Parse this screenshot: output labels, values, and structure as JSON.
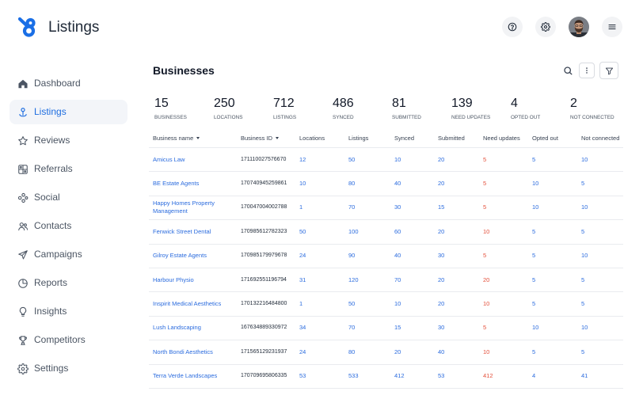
{
  "app": {
    "title": "Listings",
    "logo_icon": "brand-logo-icon"
  },
  "header": {
    "icons": {
      "help": "help-icon",
      "settings": "gear-icon",
      "avatar": "avatar",
      "menu": "hamburger-menu-icon"
    }
  },
  "sidebar": {
    "items": [
      {
        "label": "Dashboard",
        "icon": "home-icon",
        "active": false
      },
      {
        "label": "Listings",
        "icon": "location-pin-icon",
        "active": true
      },
      {
        "label": "Reviews",
        "icon": "star-icon",
        "active": false
      },
      {
        "label": "Referrals",
        "icon": "gift-grid-icon",
        "active": false
      },
      {
        "label": "Social",
        "icon": "share-icon",
        "active": false
      },
      {
        "label": "Contacts",
        "icon": "users-icon",
        "active": false
      },
      {
        "label": "Campaigns",
        "icon": "paper-plane-icon",
        "active": false
      },
      {
        "label": "Reports",
        "icon": "pie-chart-icon",
        "active": false
      },
      {
        "label": "Insights",
        "icon": "lightbulb-icon",
        "active": false
      },
      {
        "label": "Competitors",
        "icon": "trophy-icon",
        "active": false
      },
      {
        "label": "Settings",
        "icon": "gear-icon",
        "active": false
      }
    ]
  },
  "main": {
    "title": "Businesses",
    "toolbar": {
      "search_icon": "search-icon",
      "more_icon": "more-vertical-icon",
      "filter_icon": "filter-icon"
    },
    "stats": [
      {
        "value": "15",
        "label": "BUSINESSES"
      },
      {
        "value": "250",
        "label": "LOCATIONS"
      },
      {
        "value": "712",
        "label": "LISTINGS"
      },
      {
        "value": "486",
        "label": "SYNCED"
      },
      {
        "value": "81",
        "label": "SUBMITTED"
      },
      {
        "value": "139",
        "label": "NEED UPDATES"
      },
      {
        "value": "4",
        "label": "OPTED OUT"
      },
      {
        "value": "2",
        "label": "NOT CONNECTED"
      }
    ],
    "table": {
      "columns": [
        "Business name",
        "Business ID",
        "Locations",
        "Listings",
        "Synced",
        "Submitted",
        "Need updates",
        "Opted out",
        "Not connected"
      ],
      "rows": [
        {
          "name": "Amicus Law",
          "id": "171110027576670",
          "locations": "12",
          "listings": "50",
          "synced": "10",
          "submitted": "20",
          "need_updates": "5",
          "opted_out": "5",
          "not_connected": "10"
        },
        {
          "name": "BE Estate Agents",
          "id": "170740945259861",
          "locations": "10",
          "listings": "80",
          "synced": "40",
          "submitted": "20",
          "need_updates": "5",
          "opted_out": "10",
          "not_connected": "5"
        },
        {
          "name": "Happy Homes Property Management",
          "id": "170047004002788",
          "locations": "1",
          "listings": "70",
          "synced": "30",
          "submitted": "15",
          "need_updates": "5",
          "opted_out": "10",
          "not_connected": "10"
        },
        {
          "name": "Fenwick Street Dental",
          "id": "170985612782323",
          "locations": "50",
          "listings": "100",
          "synced": "60",
          "submitted": "20",
          "need_updates": "10",
          "opted_out": "5",
          "not_connected": "5"
        },
        {
          "name": "Gilroy Estate Agents",
          "id": "170985179979678",
          "locations": "24",
          "listings": "90",
          "synced": "40",
          "submitted": "30",
          "need_updates": "5",
          "opted_out": "5",
          "not_connected": "10"
        },
        {
          "name": "Harbour Physio",
          "id": "171692551196794",
          "locations": "31",
          "listings": "120",
          "synced": "70",
          "submitted": "20",
          "need_updates": "20",
          "opted_out": "5",
          "not_connected": "5"
        },
        {
          "name": "Inspirit Medical Aesthetics",
          "id": "170132216484800",
          "locations": "1",
          "listings": "50",
          "synced": "10",
          "submitted": "20",
          "need_updates": "10",
          "opted_out": "5",
          "not_connected": "5"
        },
        {
          "name": "Lush Landscaping",
          "id": "167634889330972",
          "locations": "34",
          "listings": "70",
          "synced": "15",
          "submitted": "30",
          "need_updates": "5",
          "opted_out": "10",
          "not_connected": "10"
        },
        {
          "name": "North Bondi Aesthetics",
          "id": "171565129231937",
          "locations": "24",
          "listings": "80",
          "synced": "20",
          "submitted": "40",
          "need_updates": "10",
          "opted_out": "5",
          "not_connected": "5"
        },
        {
          "name": "Terra Verde Landscapes",
          "id": "170709695806335",
          "locations": "53",
          "listings": "533",
          "synced": "412",
          "submitted": "53",
          "need_updates": "412",
          "opted_out": "4",
          "not_connected": "41"
        }
      ]
    }
  },
  "colors": {
    "accent": "#2a6bde",
    "active_nav": "#1f6ee0",
    "active_nav_bg": "#f3f5f9",
    "need_updates": "#e4503b",
    "text": "#1f2937",
    "muted": "#4b5563",
    "divider": "#e9ebef",
    "icon_button_bg": "#f2f3f5"
  }
}
